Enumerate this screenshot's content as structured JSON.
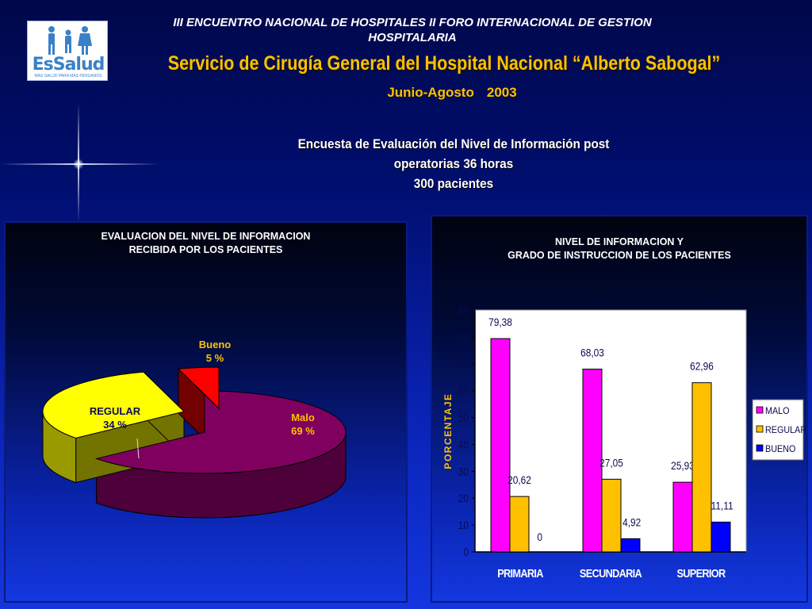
{
  "header": {
    "event_line1": "III ENCUENTRO NACIONAL DE HOSPITALES II FORO INTERNACIONAL DE GESTION",
    "event_line2": "HOSPITALARIA",
    "service_title": "Servicio de Cirugía General del Hospital Nacional “Alberto Sabogal”",
    "period": "Junio-Agosto",
    "year": "2003"
  },
  "logo": {
    "name": "EsSalud",
    "tagline": "MAS SALUD PARA MAS PERUANOS"
  },
  "survey": {
    "line1": "Encuesta de Evaluación del Nivel de Información  post",
    "line2": "operatorias 36 horas",
    "line3": "300 pacientes"
  },
  "colors": {
    "malo": "#ff00ff",
    "regular": "#ffc000",
    "bueno": "#0000ff",
    "pie_malo": "#800060",
    "pie_regular": "#ffff00",
    "pie_bueno": "#ff0000"
  },
  "chart_data": [
    {
      "type": "pie",
      "title_line1": "EVALUACION DEL NIVEL DE INFORMACION",
      "title_line2": "RECIBIDA POR LOS PACIENTES",
      "slices": [
        {
          "name": "Malo",
          "value": 69,
          "label": "69  %"
        },
        {
          "name": "REGULAR",
          "value": 34,
          "label": "34  %"
        },
        {
          "name": "Bueno",
          "value": 5,
          "label": "5  %"
        }
      ]
    },
    {
      "type": "bar",
      "title_line1": "NIVEL DE INFORMACION Y",
      "title_line2": "GRADO DE INSTRUCCION DE LOS PACIENTES",
      "ylabel": "PORCENTAJE",
      "ylim": [
        0,
        90
      ],
      "yticks": [
        0,
        10,
        20,
        30,
        40,
        50,
        60,
        70,
        80,
        90
      ],
      "categories": [
        "PRIMARIA",
        "SECUNDARIA",
        "SUPERIOR"
      ],
      "legend_position": "right",
      "series": [
        {
          "name": "MALO",
          "values": [
            79.38,
            68.03,
            25.93
          ],
          "labels": [
            "79,38",
            "68,03",
            "25,93"
          ]
        },
        {
          "name": "REGULAR",
          "values": [
            20.62,
            27.05,
            62.96
          ],
          "labels": [
            "20,62",
            "27,05",
            "62,96"
          ]
        },
        {
          "name": "BUENO",
          "values": [
            0,
            4.92,
            11.11
          ],
          "labels": [
            "0",
            "4,92",
            "11,11"
          ]
        }
      ]
    }
  ]
}
